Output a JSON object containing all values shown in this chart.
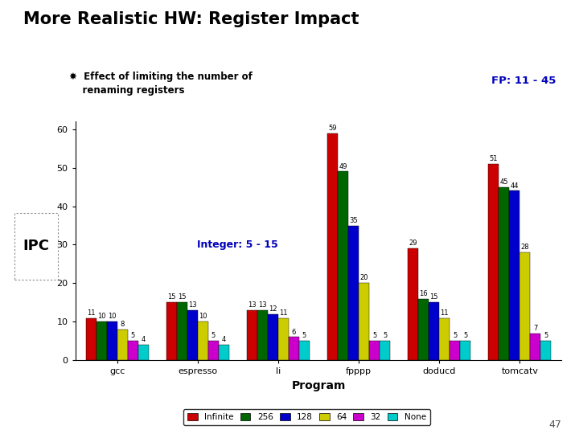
{
  "title": "More Realistic HW: Register Impact",
  "subtitle_bullet": "✸  Effect of limiting the number of\n    renaming registers",
  "fp_label": "FP: 11 - 45",
  "int_label": "Integer: 5 - 15",
  "xlabel": "Program",
  "ylabel": "IPC",
  "ylim": [
    0,
    62
  ],
  "yticks": [
    0,
    10,
    20,
    30,
    40,
    50,
    60
  ],
  "programs": [
    "gcc",
    "espresso",
    "li",
    "fpppp",
    "doducd",
    "tomcatv"
  ],
  "series_labels": [
    "Infinite",
    "256",
    "128",
    "64",
    "32",
    "None"
  ],
  "series_colors": [
    "#cc0000",
    "#006600",
    "#0000cc",
    "#cccc00",
    "#cc00cc",
    "#00cccc"
  ],
  "data": {
    "gcc": [
      11,
      10,
      10,
      8,
      5,
      4
    ],
    "espresso": [
      15,
      15,
      13,
      10,
      5,
      4
    ],
    "li": [
      13,
      13,
      12,
      11,
      6,
      5
    ],
    "fpppp": [
      59,
      49,
      35,
      20,
      5,
      5
    ],
    "doducd": [
      29,
      16,
      15,
      11,
      5,
      5
    ],
    "tomcatv": [
      51,
      45,
      44,
      28,
      7,
      5
    ]
  },
  "page_number": "47",
  "highlight_color": "#d4aa00",
  "fp_int_color": "#0000bb",
  "bar_width": 0.13,
  "label_fontsize": 6.0,
  "tick_fontsize": 8,
  "axis_label_fontsize": 9
}
